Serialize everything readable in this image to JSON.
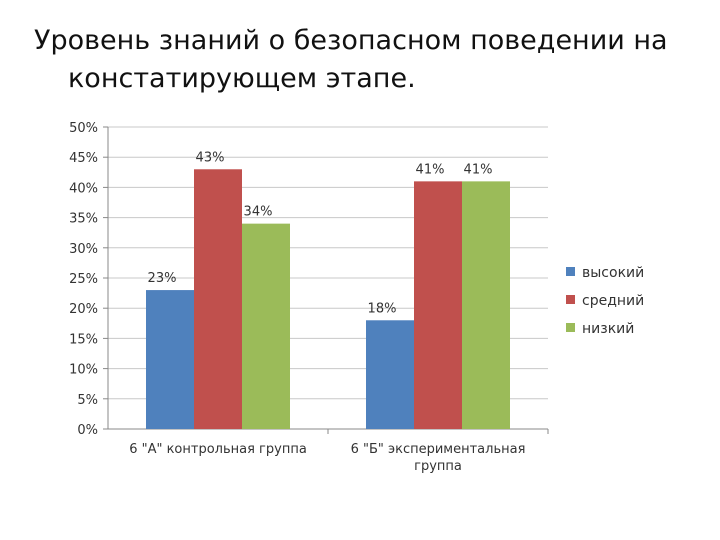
{
  "slide": {
    "title_line1": "Уровень знаний о безопасном поведении на",
    "title_line2": "констатирующем этапе."
  },
  "chart_data": {
    "type": "bar",
    "title": "",
    "xlabel": "",
    "ylabel": "",
    "categories": [
      [
        "6 \"А\" контрольная группа"
      ],
      [
        "6 \"Б\" экспериментальная",
        "группа"
      ]
    ],
    "series": [
      {
        "name": "высокий",
        "values": [
          23,
          18
        ],
        "labels": [
          "23%",
          "18%"
        ],
        "color": "#4F81BD"
      },
      {
        "name": "средний",
        "values": [
          43,
          41
        ],
        "labels": [
          "43%",
          "41%"
        ],
        "color": "#C0504D"
      },
      {
        "name": "низкий",
        "values": [
          34,
          41
        ],
        "labels": [
          "34%",
          "41%"
        ],
        "color": "#9BBB59"
      }
    ],
    "ylim": [
      0,
      50
    ],
    "yticks": [
      "0%",
      "5%",
      "10%",
      "15%",
      "20%",
      "25%",
      "30%",
      "35%",
      "40%",
      "45%",
      "50%"
    ],
    "grid": true,
    "legend_position": "right"
  }
}
